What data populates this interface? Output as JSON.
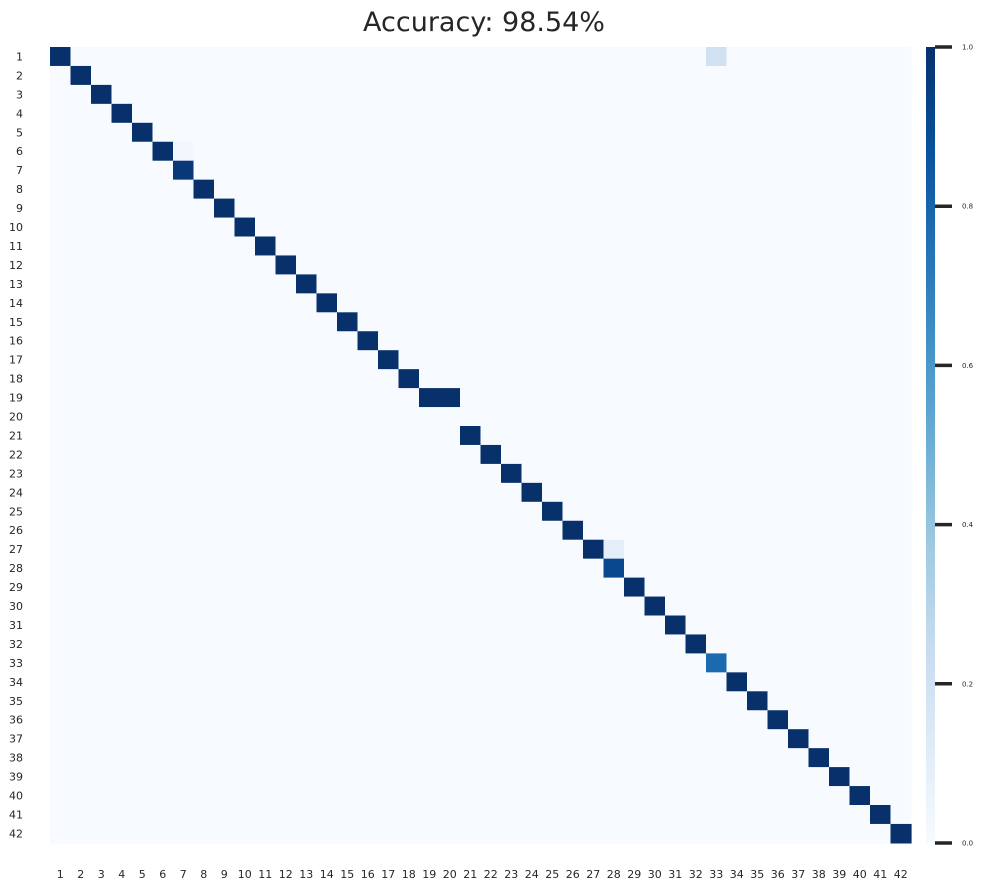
{
  "chart_data": {
    "type": "heatmap",
    "title": "Accuracy: 98.54%",
    "xlabel": "",
    "ylabel": "",
    "x_tick_labels": [
      "1",
      "2",
      "3",
      "4",
      "5",
      "6",
      "7",
      "8",
      "9",
      "10",
      "11",
      "12",
      "13",
      "14",
      "15",
      "16",
      "17",
      "18",
      "19",
      "20",
      "21",
      "22",
      "23",
      "24",
      "25",
      "26",
      "27",
      "28",
      "29",
      "30",
      "31",
      "32",
      "33",
      "34",
      "35",
      "36",
      "37",
      "38",
      "39",
      "40",
      "41",
      "42"
    ],
    "y_tick_labels": [
      "1",
      "2",
      "3",
      "4",
      "5",
      "6",
      "7",
      "8",
      "9",
      "10",
      "11",
      "12",
      "13",
      "14",
      "15",
      "16",
      "17",
      "18",
      "19",
      "20",
      "21",
      "22",
      "23",
      "24",
      "25",
      "26",
      "27",
      "28",
      "29",
      "30",
      "31",
      "32",
      "33",
      "34",
      "35",
      "36",
      "37",
      "38",
      "39",
      "40",
      "41",
      "42"
    ],
    "diagonal_default": 1.0,
    "cells": [
      {
        "row": 1,
        "col": 1,
        "value": 1.0
      },
      {
        "row": 1,
        "col": 33,
        "value": 0.2
      },
      {
        "row": 6,
        "col": 7,
        "value": 0.03
      },
      {
        "row": 7,
        "col": 7,
        "value": 0.97
      },
      {
        "row": 19,
        "col": 19,
        "value": 1.0
      },
      {
        "row": 19,
        "col": 20,
        "value": 1.0
      },
      {
        "row": 20,
        "col": 20,
        "value": 0.0
      },
      {
        "row": 27,
        "col": 28,
        "value": 0.09
      },
      {
        "row": 28,
        "col": 28,
        "value": 0.91
      },
      {
        "row": 33,
        "col": 33,
        "value": 0.78
      }
    ],
    "colorbar": {
      "colormap": "Blues",
      "range": [
        0.0,
        1.0
      ],
      "ticks": [
        0.0,
        0.2,
        0.4,
        0.6,
        0.8,
        1.0
      ],
      "tick_labels": [
        "0.0",
        "0.2",
        "0.4",
        "0.6",
        "0.8",
        "1.0"
      ]
    }
  }
}
